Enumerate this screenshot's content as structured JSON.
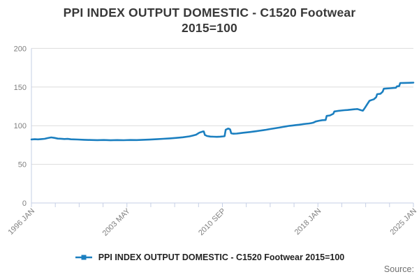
{
  "title": {
    "line1": "PPI INDEX OUTPUT DOMESTIC - C1520 Footwear",
    "line2": "2015=100"
  },
  "legend": {
    "label": "PPI INDEX OUTPUT DOMESTIC - C1520 Footwear 2015=100"
  },
  "source": {
    "label": "Source:"
  },
  "colors": {
    "line": "#1b7fc0",
    "axis": "#c6cfe5",
    "grid": "#dcdcdc",
    "tick_text": "#7f7f7f",
    "title_text": "#383838",
    "legend_text": "#222222",
    "source_text": "#6f6f6f"
  },
  "chart_data": {
    "type": "line",
    "title": "PPI INDEX OUTPUT DOMESTIC - C1520 Footwear 2015=100",
    "xlabel": "",
    "ylabel": "",
    "ylim": [
      0,
      200
    ],
    "yticks": [
      0,
      50,
      100,
      150,
      200
    ],
    "x_range_months": [
      "1996-01",
      "2025-01"
    ],
    "x_tick_count": 17,
    "x_label_every": 4,
    "x_tick_labels": [
      "1996 JAN",
      "2003 MAY",
      "2010 SEP",
      "2018 JAN",
      "2025 JAN"
    ],
    "grid": "horizontal",
    "legend_position": "bottom",
    "series": [
      {
        "name": "PPI INDEX OUTPUT DOMESTIC - C1520 Footwear 2015=100",
        "points": [
          [
            "1996-01",
            82.2
          ],
          [
            "1996-04",
            82.5
          ],
          [
            "1996-07",
            82.3
          ],
          [
            "1996-10",
            82.7
          ],
          [
            "1997-01",
            83.0
          ],
          [
            "1997-04",
            84.0
          ],
          [
            "1997-07",
            84.8
          ],
          [
            "1997-10",
            84.2
          ],
          [
            "1998-01",
            83.3
          ],
          [
            "1998-04",
            83.1
          ],
          [
            "1998-07",
            82.8
          ],
          [
            "1998-10",
            82.9
          ],
          [
            "1999-01",
            82.4
          ],
          [
            "1999-07",
            82.1
          ],
          [
            "2000-01",
            81.8
          ],
          [
            "2000-07",
            81.5
          ],
          [
            "2001-01",
            81.3
          ],
          [
            "2001-07",
            81.5
          ],
          [
            "2002-01",
            81.1
          ],
          [
            "2002-07",
            81.4
          ],
          [
            "2003-01",
            81.2
          ],
          [
            "2003-07",
            81.5
          ],
          [
            "2004-01",
            81.4
          ],
          [
            "2004-07",
            81.8
          ],
          [
            "2005-01",
            82.0
          ],
          [
            "2005-07",
            82.5
          ],
          [
            "2006-01",
            83.0
          ],
          [
            "2006-07",
            83.6
          ],
          [
            "2007-01",
            84.2
          ],
          [
            "2007-07",
            85.0
          ],
          [
            "2008-01",
            86.2
          ],
          [
            "2008-04",
            87.2
          ],
          [
            "2008-07",
            88.4
          ],
          [
            "2008-10",
            91.0
          ],
          [
            "2009-01",
            92.4
          ],
          [
            "2009-02",
            92.6
          ],
          [
            "2009-03",
            88.0
          ],
          [
            "2009-05",
            86.6
          ],
          [
            "2009-08",
            85.9
          ],
          [
            "2009-11",
            85.7
          ],
          [
            "2010-02",
            85.6
          ],
          [
            "2010-05",
            85.8
          ],
          [
            "2010-08",
            86.2
          ],
          [
            "2010-09",
            86.5
          ],
          [
            "2010-10",
            94.8
          ],
          [
            "2010-12",
            96.2
          ],
          [
            "2011-01",
            96.0
          ],
          [
            "2011-02",
            95.2
          ],
          [
            "2011-03",
            90.2
          ],
          [
            "2011-05",
            89.6
          ],
          [
            "2011-08",
            89.8
          ],
          [
            "2011-11",
            90.3
          ],
          [
            "2012-02",
            90.9
          ],
          [
            "2012-05",
            91.3
          ],
          [
            "2012-08",
            91.8
          ],
          [
            "2012-11",
            92.3
          ],
          [
            "2013-02",
            92.9
          ],
          [
            "2013-05",
            93.5
          ],
          [
            "2013-08",
            94.1
          ],
          [
            "2013-11",
            94.8
          ],
          [
            "2014-02",
            95.6
          ],
          [
            "2014-05",
            96.2
          ],
          [
            "2014-08",
            96.9
          ],
          [
            "2014-11",
            97.6
          ],
          [
            "2015-02",
            98.4
          ],
          [
            "2015-05",
            99.1
          ],
          [
            "2015-08",
            99.8
          ],
          [
            "2015-11",
            100.3
          ],
          [
            "2016-02",
            100.8
          ],
          [
            "2016-05",
            101.3
          ],
          [
            "2016-08",
            101.9
          ],
          [
            "2016-11",
            102.4
          ],
          [
            "2017-02",
            102.9
          ],
          [
            "2017-04",
            103.3
          ],
          [
            "2017-06",
            104.1
          ],
          [
            "2017-08",
            105.4
          ],
          [
            "2017-11",
            106.4
          ],
          [
            "2018-02",
            107.1
          ],
          [
            "2018-05",
            107.3
          ],
          [
            "2018-06",
            112.6
          ],
          [
            "2018-09",
            113.3
          ],
          [
            "2018-12",
            115.4
          ],
          [
            "2019-01",
            118.4
          ],
          [
            "2019-04",
            119.0
          ],
          [
            "2019-07",
            119.6
          ],
          [
            "2019-10",
            120.0
          ],
          [
            "2020-01",
            120.3
          ],
          [
            "2020-04",
            120.8
          ],
          [
            "2020-07",
            121.2
          ],
          [
            "2020-10",
            121.6
          ],
          [
            "2021-01",
            120.1
          ],
          [
            "2021-03",
            119.4
          ],
          [
            "2021-05",
            123.5
          ],
          [
            "2021-07",
            128.0
          ],
          [
            "2021-09",
            132.2
          ],
          [
            "2021-11",
            133.3
          ],
          [
            "2022-01",
            134.2
          ],
          [
            "2022-03",
            136.8
          ],
          [
            "2022-04",
            140.8
          ],
          [
            "2022-07",
            141.3
          ],
          [
            "2022-09",
            144.0
          ],
          [
            "2022-10",
            147.8
          ],
          [
            "2023-01",
            148.2
          ],
          [
            "2023-04",
            148.5
          ],
          [
            "2023-07",
            148.8
          ],
          [
            "2023-09",
            149.1
          ],
          [
            "2023-10",
            150.9
          ],
          [
            "2023-12",
            151.3
          ],
          [
            "2024-01",
            155.2
          ],
          [
            "2024-04",
            155.3
          ],
          [
            "2024-07",
            155.4
          ],
          [
            "2024-10",
            155.5
          ],
          [
            "2025-01",
            155.7
          ]
        ]
      }
    ]
  }
}
